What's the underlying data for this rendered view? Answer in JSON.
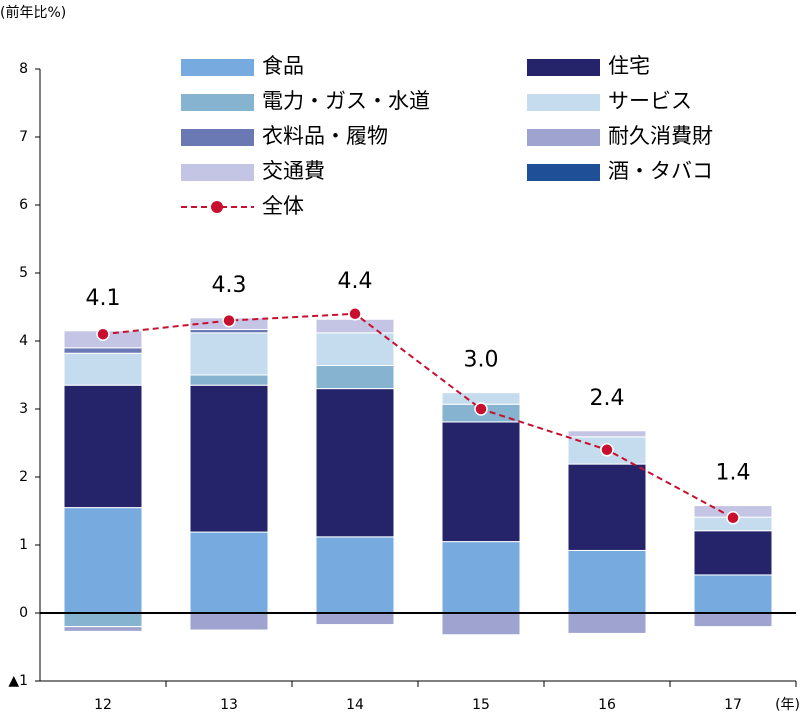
{
  "chart_data": {
    "type": "bar",
    "stacked": true,
    "y_label": "(前年比%)",
    "x_label": "(年)",
    "categories": [
      "12",
      "13",
      "14",
      "15",
      "16",
      "17"
    ],
    "ylim": [
      -1,
      8
    ],
    "yticks": [
      {
        "value": -1,
        "label": "▲1"
      },
      0,
      1,
      2,
      3,
      4,
      5,
      6,
      7,
      8
    ],
    "series": [
      {
        "name": "食品",
        "color": "#77abe0",
        "values": [
          1.55,
          1.19,
          1.12,
          1.05,
          0.92,
          0.56
        ]
      },
      {
        "name": "住宅",
        "color": "#25246b",
        "values": [
          1.8,
          2.16,
          2.18,
          1.76,
          1.27,
          0.65
        ]
      },
      {
        "name": "電力・ガス・水道",
        "color": "#86b3cf",
        "values": [
          -0.2,
          0.15,
          0.34,
          0.26,
          null,
          null
        ]
      },
      {
        "name": "サービス",
        "color": "#c5dbee",
        "values": [
          0.47,
          0.62,
          0.48,
          0.17,
          0.4,
          0.2
        ]
      },
      {
        "name": "衣料品・履物",
        "color": "#6a78b4",
        "values": [
          0.08,
          0.05,
          null,
          null,
          null,
          null
        ]
      },
      {
        "name": "耐久消費財",
        "color": "#9ea4cf",
        "values": [
          -0.07,
          -0.25,
          -0.17,
          -0.32,
          -0.3,
          -0.2
        ]
      },
      {
        "name": "交通費",
        "color": "#c4c4e4",
        "values": [
          0.25,
          0.17,
          0.2,
          null,
          0.09,
          0.17
        ]
      },
      {
        "name": "酒・タバコ",
        "color": "#1f4f96",
        "values": [
          null,
          null,
          null,
          null,
          null,
          null
        ]
      }
    ],
    "line": {
      "name": "全体",
      "color": "#c8102e",
      "values": [
        4.1,
        4.3,
        4.4,
        3.0,
        2.4,
        1.4
      ],
      "value_labels": [
        "4.1",
        "4.3",
        "4.4",
        "3.0",
        "2.4",
        "1.4"
      ]
    }
  }
}
